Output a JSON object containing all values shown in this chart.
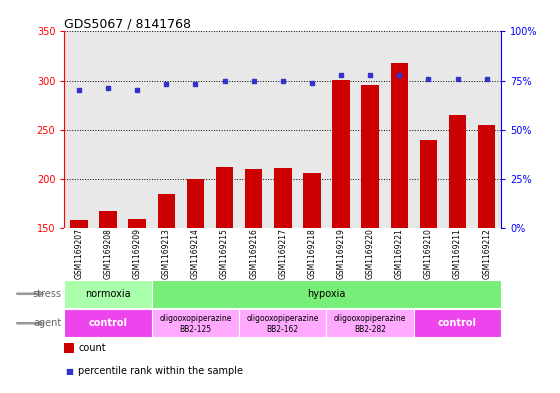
{
  "title": "GDS5067 / 8141768",
  "samples": [
    "GSM1169207",
    "GSM1169208",
    "GSM1169209",
    "GSM1169213",
    "GSM1169214",
    "GSM1169215",
    "GSM1169216",
    "GSM1169217",
    "GSM1169218",
    "GSM1169219",
    "GSM1169220",
    "GSM1169221",
    "GSM1169210",
    "GSM1169211",
    "GSM1169212"
  ],
  "counts": [
    158,
    167,
    159,
    185,
    200,
    212,
    210,
    211,
    206,
    301,
    295,
    318,
    240,
    265,
    255
  ],
  "percentiles": [
    70,
    71,
    70,
    73,
    73,
    75,
    75,
    75,
    74,
    78,
    78,
    78,
    76,
    76,
    76
  ],
  "bar_color": "#cc0000",
  "dot_color": "#3333cc",
  "ylim_left": [
    150,
    350
  ],
  "ylim_right": [
    0,
    100
  ],
  "yticks_left": [
    150,
    200,
    250,
    300,
    350
  ],
  "yticks_right": [
    0,
    25,
    50,
    75,
    100
  ],
  "stress_groups": [
    {
      "label": "normoxia",
      "start": 0,
      "end": 3,
      "color": "#aaffaa"
    },
    {
      "label": "hypoxia",
      "start": 3,
      "end": 15,
      "color": "#77ee77"
    }
  ],
  "agent_groups": [
    {
      "label": "control",
      "line2": "",
      "start": 0,
      "end": 3,
      "color": "#ee44ee"
    },
    {
      "label": "oligooxopiperazine",
      "line2": "BB2-125",
      "start": 3,
      "end": 6,
      "color": "#ffaaff"
    },
    {
      "label": "oligooxopiperazine",
      "line2": "BB2-162",
      "start": 6,
      "end": 9,
      "color": "#ffaaff"
    },
    {
      "label": "oligooxopiperazine",
      "line2": "BB2-282",
      "start": 9,
      "end": 12,
      "color": "#ffaaff"
    },
    {
      "label": "control",
      "line2": "",
      "start": 12,
      "end": 15,
      "color": "#ee44ee"
    }
  ],
  "legend_count_label": "count",
  "legend_pct_label": "percentile rank within the sample",
  "stress_label": "stress",
  "agent_label": "agent",
  "bg_color": "#ffffff",
  "plot_bg_color": "#e8e8e8",
  "tick_bg_color": "#cccccc"
}
